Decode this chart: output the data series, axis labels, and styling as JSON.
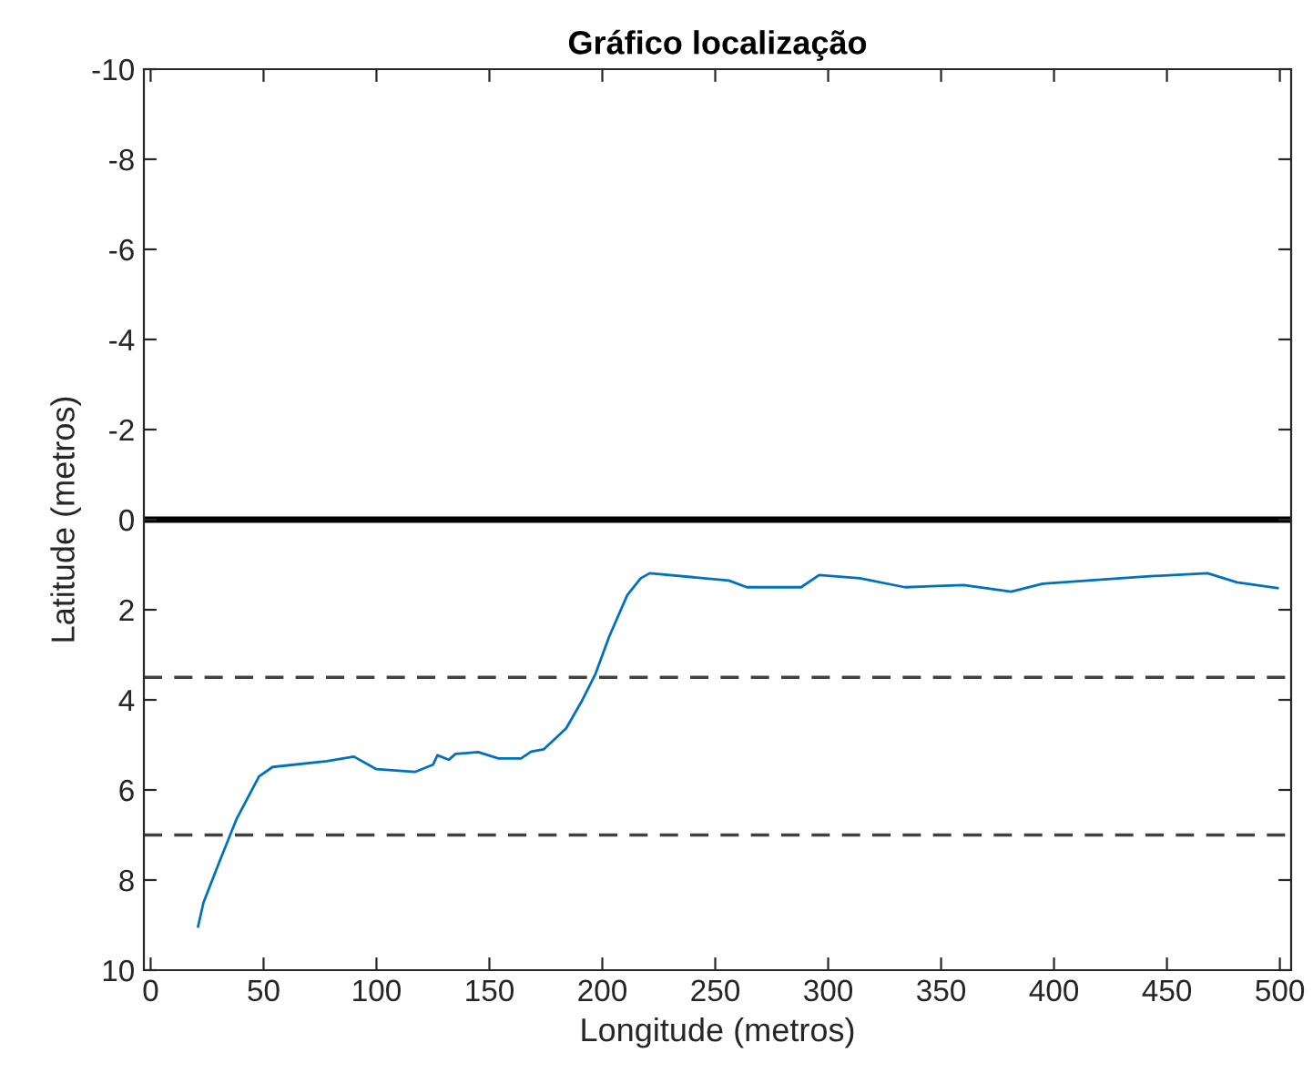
{
  "chart_data": {
    "type": "line",
    "title": "Gráfico localização",
    "xlabel": "Longitude (metros)",
    "ylabel": "Latitude (metros)",
    "xlim": [
      -3,
      505
    ],
    "xticks": [
      0,
      50,
      100,
      150,
      200,
      250,
      300,
      350,
      400,
      450,
      500
    ],
    "ylim": [
      10,
      -10
    ],
    "yticks": [
      -10,
      -8,
      -6,
      -4,
      -2,
      0,
      2,
      4,
      6,
      8,
      10
    ],
    "grid": false,
    "legend": false,
    "ref_lines": [
      {
        "axis": "y",
        "value": 0,
        "color": "#000000",
        "line_style": "solid"
      },
      {
        "axis": "y",
        "value": 3.5,
        "color": "#404040",
        "line_style": "dashed"
      },
      {
        "axis": "y",
        "value": 7,
        "color": "#404040",
        "line_style": "dashed"
      }
    ],
    "series": [
      {
        "color": "#0072bd",
        "x": [
          21,
          23.4,
          30,
          38,
          48,
          54,
          78,
          90,
          100,
          117,
          125,
          127,
          132,
          135,
          145,
          154,
          164,
          168.5,
          174,
          184,
          191,
          197,
          203,
          211,
          217,
          221,
          256,
          264,
          288,
          296,
          314,
          334,
          360,
          381,
          395,
          441,
          468,
          481,
          499
        ],
        "values": [
          9.03,
          8.5,
          7.65,
          6.65,
          5.7,
          5.49,
          5.36,
          5.26,
          5.54,
          5.6,
          5.44,
          5.23,
          5.33,
          5.2,
          5.16,
          5.3,
          5.3,
          5.15,
          5.1,
          4.63,
          4.02,
          3.42,
          2.6,
          1.68,
          1.3,
          1.19,
          1.35,
          1.5,
          1.5,
          1.23,
          1.3,
          1.5,
          1.45,
          1.6,
          1.42,
          1.26,
          1.19,
          1.39,
          1.52
        ]
      }
    ]
  }
}
